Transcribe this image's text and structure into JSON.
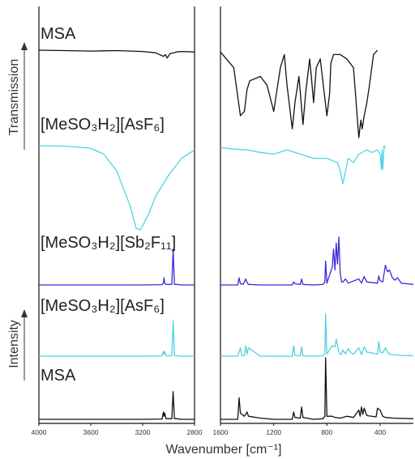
{
  "chart_data": {
    "type": "line",
    "xlabel": "Wavenumber [cm⁻¹]",
    "ylabel_top": "Transmission",
    "ylabel_bottom": "Intensity",
    "x_reversed": true,
    "xlim_left_panel": [
      4000,
      2800
    ],
    "xlim_right_panel": [
      1600,
      150
    ],
    "xticks_left": [
      "4000",
      "3600",
      "3200",
      "2800"
    ],
    "xticks_right": [
      "1600",
      "1200",
      "800",
      "400"
    ],
    "grid": false,
    "colors": {
      "msa": "#111111",
      "asf6": "#4fd3e0",
      "sb2f11": "#3a2bd6"
    },
    "series_labels": {
      "msa_ir": "MSA",
      "asf6_ir": "[MeSO₃H₂][AsF₆]",
      "sb2f11_raman": "[MeSO₃H₂][Sb₂F₁₁]",
      "asf6_raman": "[MeSO₃H₂][AsF₆]",
      "msa_raman": "MSA"
    },
    "series": [
      {
        "key": "msa_ir",
        "color": "#111111",
        "x": [
          4000,
          3800,
          3600,
          3400,
          3200,
          3100,
          3040,
          3025,
          3010,
          2990,
          2960,
          2940,
          2900,
          2800,
          1600,
          1500,
          1450,
          1420,
          1400,
          1380,
          1300,
          1250,
          1200,
          1170,
          1150,
          1120,
          1100,
          1060,
          1040,
          1010,
          980,
          960,
          930,
          920,
          900,
          880,
          850,
          800,
          780,
          770,
          750,
          700,
          650,
          600,
          560,
          545,
          535,
          520,
          500,
          480,
          450,
          420
        ],
        "y": [
          0,
          0.005,
          0.01,
          0.005,
          0.015,
          0.03,
          0.07,
          0.05,
          0.09,
          0.04,
          0.03,
          0.02,
          0.015,
          0.02,
          0.02,
          0.2,
          0.75,
          0.7,
          0.45,
          0.35,
          0.3,
          0.4,
          0.7,
          0.4,
          0.2,
          0.05,
          0.4,
          0.9,
          0.6,
          0.3,
          0.85,
          0.5,
          0.1,
          0.25,
          0.6,
          0.2,
          0.1,
          0.75,
          0.5,
          0.15,
          0.05,
          0.05,
          0.1,
          0.2,
          1.0,
          0.8,
          0.9,
          0.75,
          0.6,
          0.4,
          0.05,
          0.0
        ]
      },
      {
        "key": "asf6_ir",
        "color": "#4fd3e0",
        "x": [
          4000,
          3800,
          3600,
          3500,
          3400,
          3300,
          3250,
          3220,
          3200,
          3150,
          3100,
          3000,
          2900,
          2800,
          1600,
          1500,
          1400,
          1300,
          1200,
          1100,
          1000,
          900,
          800,
          720,
          700,
          680,
          660,
          640,
          600,
          560,
          500,
          460,
          420,
          400,
          390,
          385,
          380,
          370,
          360
        ],
        "y": [
          0,
          0.005,
          0.03,
          0.1,
          0.3,
          0.7,
          0.98,
          1.0,
          0.95,
          0.8,
          0.6,
          0.35,
          0.15,
          0.05,
          0.02,
          0.04,
          0.05,
          0.08,
          0.1,
          0.05,
          0.1,
          0.15,
          0.15,
          0.2,
          0.3,
          0.45,
          0.3,
          0.15,
          0.2,
          0.1,
          0.05,
          0.08,
          0.05,
          0.1,
          0.28,
          0.05,
          0.28,
          0.0,
          0.02
        ]
      },
      {
        "key": "sb2f11_raman",
        "color": "#3a2bd6",
        "x": [
          4000,
          3600,
          3200,
          3050,
          3040,
          3035,
          3030,
          3020,
          3000,
          2975,
          2965,
          2955,
          2940,
          2900,
          2800,
          1600,
          1470,
          1460,
          1450,
          1430,
          1410,
          1400,
          1390,
          1300,
          1200,
          1060,
          1050,
          1040,
          1000,
          990,
          980,
          900,
          830,
          815,
          810,
          800,
          760,
          750,
          740,
          730,
          720,
          710,
          700,
          690,
          680,
          660,
          640,
          620,
          560,
          540,
          520,
          500,
          420,
          410,
          400,
          380,
          360,
          345,
          330,
          310,
          290,
          270,
          240,
          200,
          150
        ],
        "y": [
          0,
          0,
          0,
          0.005,
          0.03,
          0.12,
          0.03,
          0.01,
          0.01,
          0.01,
          0.6,
          0.01,
          0.01,
          0.0,
          0.0,
          0.0,
          0.0,
          0.12,
          0.02,
          0.01,
          0.1,
          0.04,
          0.01,
          0.0,
          0.0,
          0.0,
          0.05,
          0.02,
          0.01,
          0.1,
          0.01,
          0.0,
          0.01,
          0.05,
          0.4,
          0.03,
          0.3,
          0.6,
          0.25,
          0.7,
          0.35,
          0.8,
          0.2,
          0.05,
          0.05,
          0.1,
          0.03,
          0.05,
          0.1,
          0.03,
          0.14,
          0.05,
          0.03,
          0.15,
          0.07,
          0.05,
          0.33,
          0.22,
          0.25,
          0.13,
          0.08,
          0.12,
          0.03,
          0.02,
          0.01
        ]
      },
      {
        "key": "asf6_raman",
        "color": "#4fd3e0",
        "x": [
          4000,
          3600,
          3200,
          3050,
          3040,
          3035,
          3030,
          3020,
          3000,
          2975,
          2965,
          2955,
          2940,
          2900,
          2800,
          1600,
          1470,
          1450,
          1440,
          1420,
          1410,
          1400,
          1390,
          1300,
          1200,
          1060,
          1050,
          1040,
          1000,
          990,
          980,
          900,
          830,
          815,
          810,
          800,
          760,
          740,
          730,
          720,
          710,
          700,
          690,
          680,
          660,
          640,
          620,
          600,
          560,
          540,
          520,
          500,
          420,
          410,
          400,
          380,
          360,
          345,
          330,
          310,
          290,
          240,
          150
        ],
        "y": [
          0,
          0,
          0,
          0.005,
          0.12,
          0.05,
          0.1,
          0.01,
          0.01,
          0.01,
          0.85,
          0.01,
          0.01,
          0.0,
          0.0,
          0.0,
          0.0,
          0.2,
          0.02,
          0.01,
          0.25,
          0.05,
          0.2,
          0.0,
          0.0,
          0.0,
          0.25,
          0.02,
          0.01,
          0.22,
          0.01,
          0.0,
          0.01,
          0.05,
          1.0,
          0.05,
          0.25,
          0.22,
          0.4,
          0.25,
          0.1,
          0.05,
          0.05,
          0.15,
          0.05,
          0.18,
          0.08,
          0.05,
          0.2,
          0.04,
          0.22,
          0.1,
          0.05,
          0.35,
          0.1,
          0.08,
          0.2,
          0.1,
          0.05,
          0.04,
          0.03,
          0.02,
          0.01
        ]
      },
      {
        "key": "msa_raman",
        "color": "#111111",
        "x": [
          4000,
          3600,
          3200,
          3050,
          3040,
          3035,
          3030,
          3020,
          3000,
          2975,
          2965,
          2955,
          2940,
          2900,
          2800,
          1600,
          1470,
          1460,
          1450,
          1420,
          1400,
          1390,
          1300,
          1200,
          1060,
          1050,
          1040,
          1000,
          990,
          980,
          900,
          830,
          815,
          810,
          800,
          760,
          740,
          700,
          650,
          600,
          560,
          550,
          540,
          530,
          520,
          500,
          430,
          420,
          400,
          380,
          360,
          300,
          150
        ],
        "y": [
          0,
          0,
          0,
          0.005,
          0.12,
          0.05,
          0.1,
          0.01,
          0.01,
          0.01,
          0.45,
          0.01,
          0.01,
          0.0,
          0.0,
          0.0,
          0.0,
          0.35,
          0.1,
          0.05,
          0.12,
          0.05,
          0.02,
          0.0,
          0.0,
          0.12,
          0.03,
          0.02,
          0.2,
          0.03,
          0.0,
          0.01,
          0.05,
          1.0,
          0.05,
          0.05,
          0.03,
          0.02,
          0.05,
          0.03,
          0.15,
          0.05,
          0.2,
          0.08,
          0.18,
          0.06,
          0.04,
          0.18,
          0.15,
          0.05,
          0.03,
          0.02,
          0.01
        ]
      }
    ]
  }
}
